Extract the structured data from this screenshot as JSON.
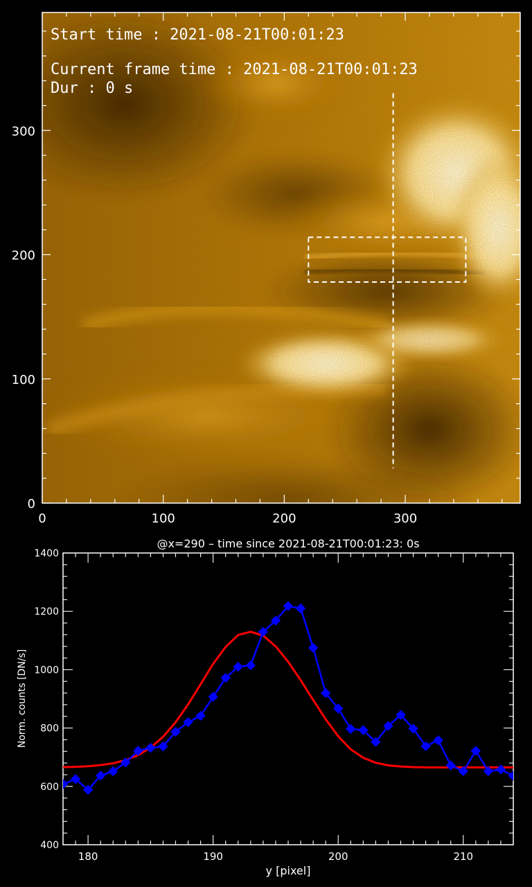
{
  "overlay": {
    "start_time": "Start time : 2021-08-21T00:01:23",
    "current_frame_time": "Current frame time :  2021-08-21T00:01:23",
    "duration": "Dur :      0 s"
  },
  "image_panel": {
    "x_ticks": [
      "0",
      "100",
      "200",
      "300"
    ],
    "y_ticks": [
      "0",
      "100",
      "200",
      "300"
    ],
    "x_range": [
      0,
      395
    ],
    "y_range": [
      0,
      395
    ],
    "slit_x": 290,
    "slit_y_range": [
      28,
      330
    ],
    "box": {
      "x": [
        220,
        350
      ],
      "y": [
        178,
        214
      ]
    },
    "colormap": "gold"
  },
  "chart_data": {
    "type": "line",
    "title": "@x=290     –     time since 2021-08-21T00:01:23:      0s",
    "xlabel": "y [pixel]",
    "ylabel": "Norm. counts  [DN/s]",
    "xlim": [
      178,
      214
    ],
    "ylim": [
      400,
      1400
    ],
    "x_ticks": [
      "180",
      "190",
      "200",
      "210"
    ],
    "y_ticks": [
      "400",
      "600",
      "800",
      "1000",
      "1200",
      "1400"
    ],
    "grid": false,
    "series": [
      {
        "color": "#0000ff",
        "marker": "diamond",
        "x": [
          178,
          179,
          180,
          181,
          182,
          183,
          184,
          185,
          186,
          187,
          188,
          189,
          190,
          191,
          192,
          193,
          194,
          195,
          196,
          197,
          198,
          199,
          200,
          201,
          202,
          203,
          204,
          205,
          206,
          207,
          208,
          209,
          210,
          211,
          212,
          213,
          214
        ],
        "y": [
          608,
          625,
          588,
          637,
          652,
          682,
          722,
          732,
          737,
          787,
          820,
          842,
          907,
          972,
          1010,
          1015,
          1130,
          1168,
          1218,
          1210,
          1075,
          920,
          867,
          797,
          793,
          752,
          807,
          845,
          798,
          738,
          758,
          672,
          652,
          722,
          652,
          658,
          636
        ]
      },
      {
        "color": "#ff0000",
        "marker": "none",
        "fit": "gaussian",
        "x": [
          178,
          179,
          180,
          181,
          182,
          183,
          184,
          185,
          186,
          187,
          188,
          189,
          190,
          191,
          192,
          193,
          194,
          195,
          196,
          197,
          198,
          199,
          200,
          201,
          202,
          203,
          204,
          205,
          206,
          207,
          208,
          209,
          210,
          211,
          212,
          213,
          214
        ],
        "y": [
          666,
          667,
          669,
          673,
          679,
          690,
          707,
          733,
          770,
          820,
          881,
          950,
          1020,
          1078,
          1119,
          1130,
          1117,
          1080,
          1027,
          964,
          896,
          830,
          772,
          727,
          698,
          681,
          672,
          668,
          666,
          665,
          665,
          665,
          665,
          665,
          665,
          665,
          665
        ]
      }
    ]
  }
}
